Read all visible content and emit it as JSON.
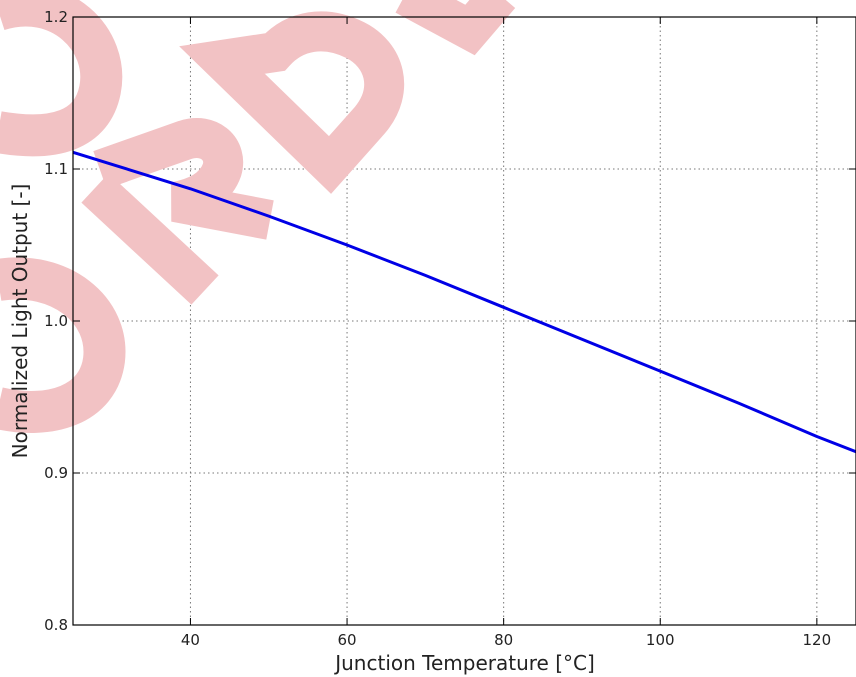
{
  "colors": {
    "series": "#0000e6",
    "watermark": "#f2c2c4",
    "grid": "#777777",
    "axes": "#000000"
  },
  "chart_data": {
    "type": "line",
    "xlabel": "Junction Temperature [°C]",
    "ylabel": "Normalized Light Output [-]",
    "xlim": [
      25,
      125
    ],
    "ylim": [
      0.8,
      1.2
    ],
    "xticks": [
      40,
      60,
      80,
      100,
      120
    ],
    "xtick_labels": [
      "40",
      "60",
      "80",
      "100",
      "120"
    ],
    "yticks": [
      0.8,
      0.9,
      1.0,
      1.1,
      1.2
    ],
    "ytick_labels": [
      "0.8",
      "0.9",
      "1.0",
      "1.1",
      "1.2"
    ],
    "grid": true,
    "legend": "none",
    "series": [
      {
        "x": [
          25,
          30,
          40,
          50,
          60,
          70,
          80,
          90,
          100,
          110,
          120,
          125
        ],
        "y": [
          1.111,
          1.103,
          1.087,
          1.069,
          1.05,
          1.03,
          1.009,
          0.988,
          0.967,
          0.946,
          0.924,
          0.914
        ]
      }
    ]
  },
  "watermark": {
    "description_icon": "watermark-icon"
  }
}
